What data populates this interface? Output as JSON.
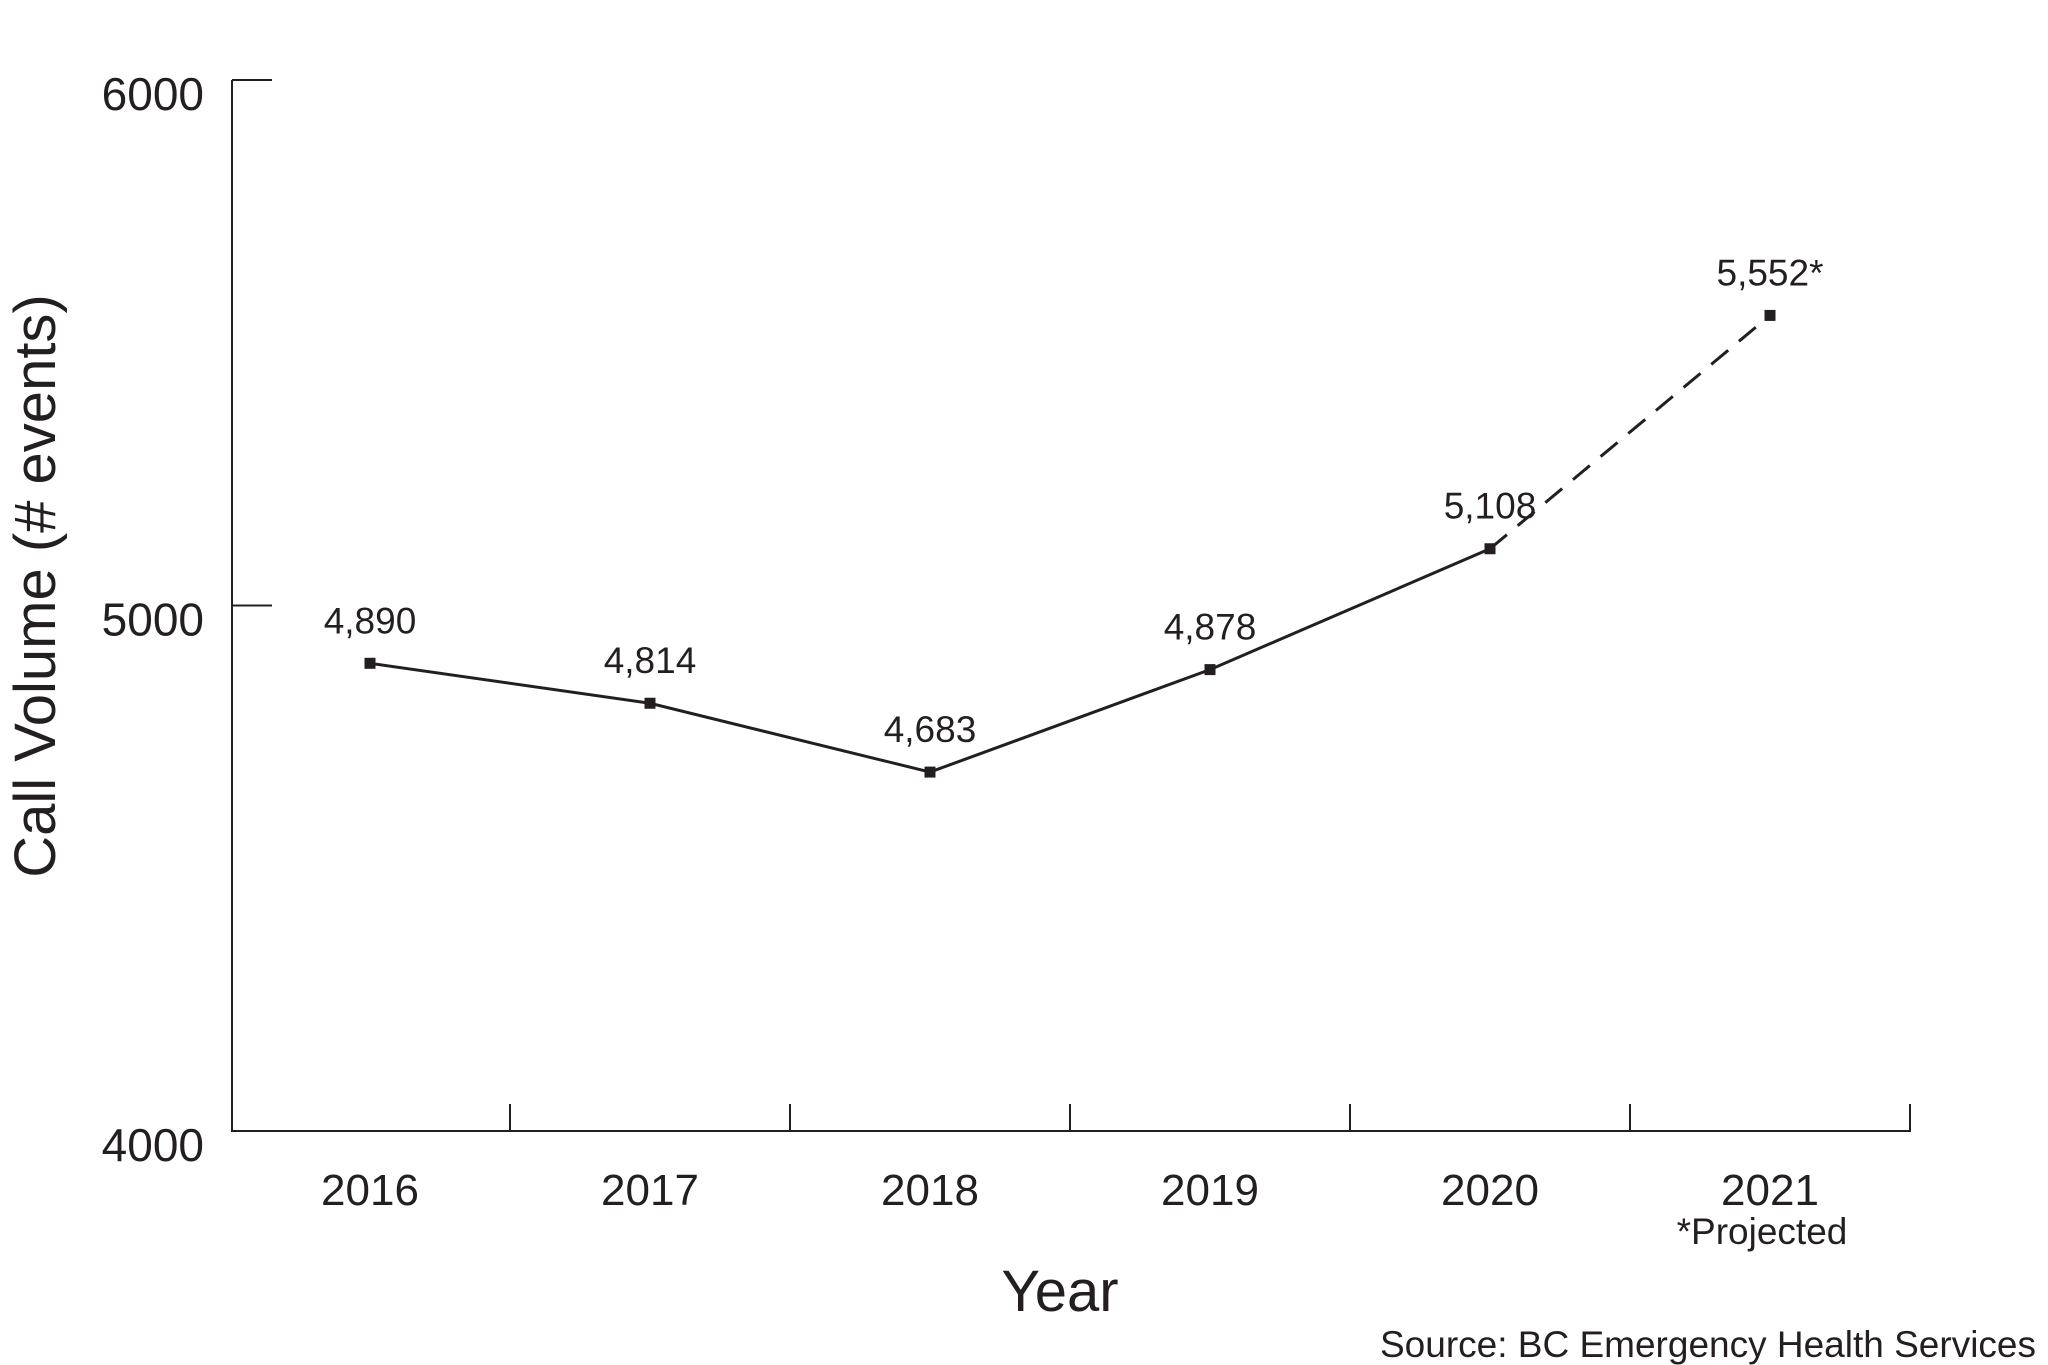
{
  "chart_data": {
    "type": "line",
    "title": "",
    "xlabel": "Year",
    "ylabel": "Call Volume (# events)",
    "categories": [
      "2016",
      "2017",
      "2018",
      "2019",
      "2020",
      "2021"
    ],
    "ylim": [
      4000,
      6000
    ],
    "yticks": [
      "6000",
      "5000",
      "4000"
    ],
    "yticks_values": [
      6000,
      5000,
      4000
    ],
    "grid": false,
    "series": [
      {
        "values": [
          4890,
          4814,
          4683,
          4878,
          5108,
          5552
        ],
        "labels": [
          "4,890",
          "4,814",
          "4,683",
          "4,878",
          "5,108",
          "5,552*"
        ],
        "projected_from_index": 4
      }
    ],
    "x_note": "*Projected",
    "source": "Source: BC Emergency Health Services"
  },
  "colors": {
    "ink": "#231f20",
    "background": "#ffffff"
  }
}
